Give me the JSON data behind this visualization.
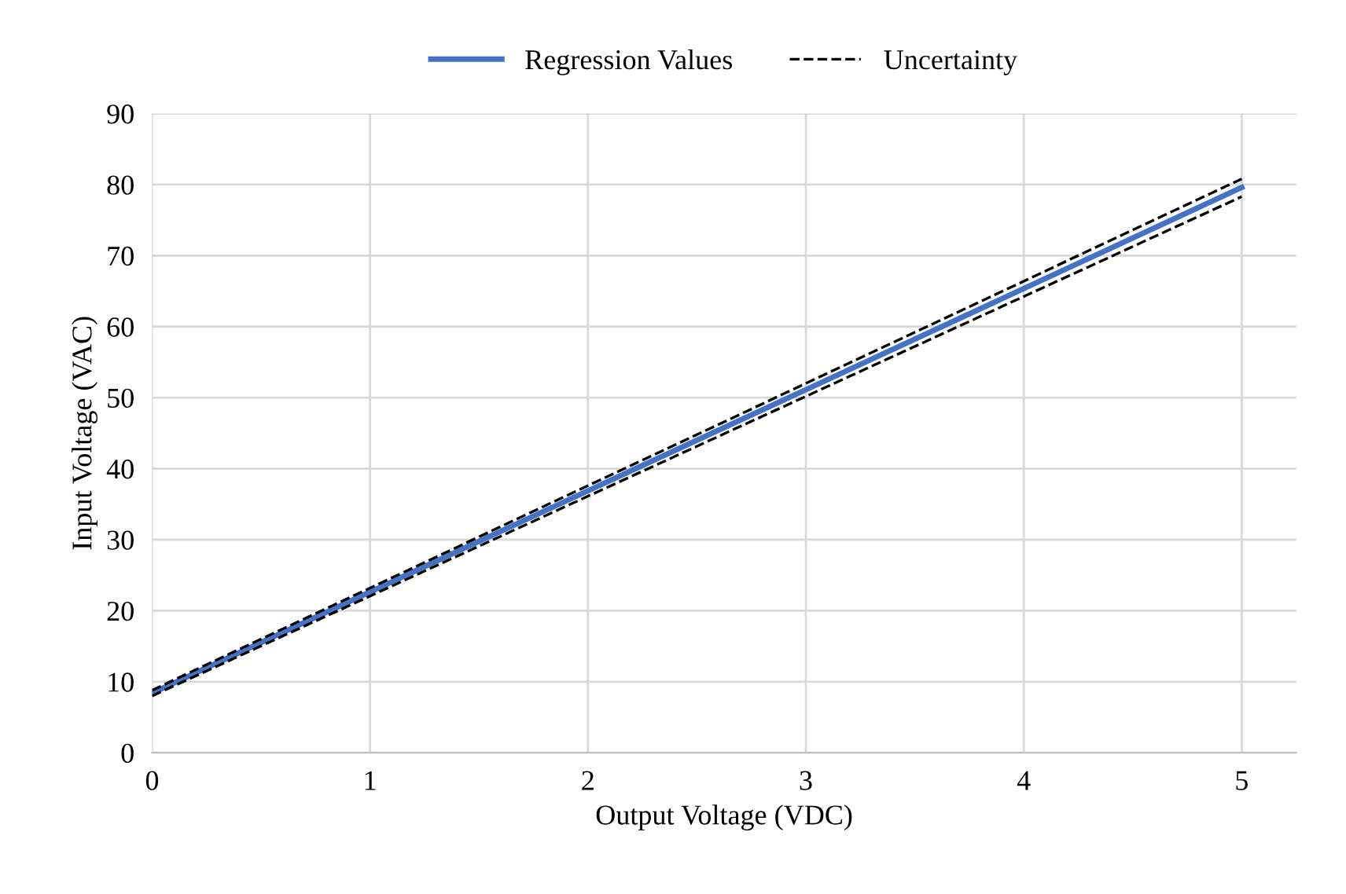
{
  "chart_data": {
    "type": "line",
    "xlabel": "Output Voltage (VDC)",
    "ylabel": "Input Voltage (VAC)",
    "x": [
      0,
      5
    ],
    "series": [
      {
        "name": "Regression Values",
        "color": "#4472c4",
        "values": [
          8.4,
          79.6
        ],
        "line_style": "solid"
      },
      {
        "name": "Uncertainty",
        "color": "#000000",
        "values": [
          8.8,
          80.8
        ],
        "line_style": "dashed"
      },
      {
        "color": "#000000",
        "values": [
          8.0,
          78.3
        ],
        "line_style": "dashed"
      }
    ],
    "xlim": [
      0,
      5.25
    ],
    "xticks": [
      0,
      1,
      2,
      3,
      4,
      5
    ],
    "ylim": [
      0,
      90
    ],
    "yticks": [
      0,
      10,
      20,
      30,
      40,
      50,
      60,
      70,
      80,
      90
    ],
    "grid": true,
    "legend": "top",
    "marker": "none"
  }
}
